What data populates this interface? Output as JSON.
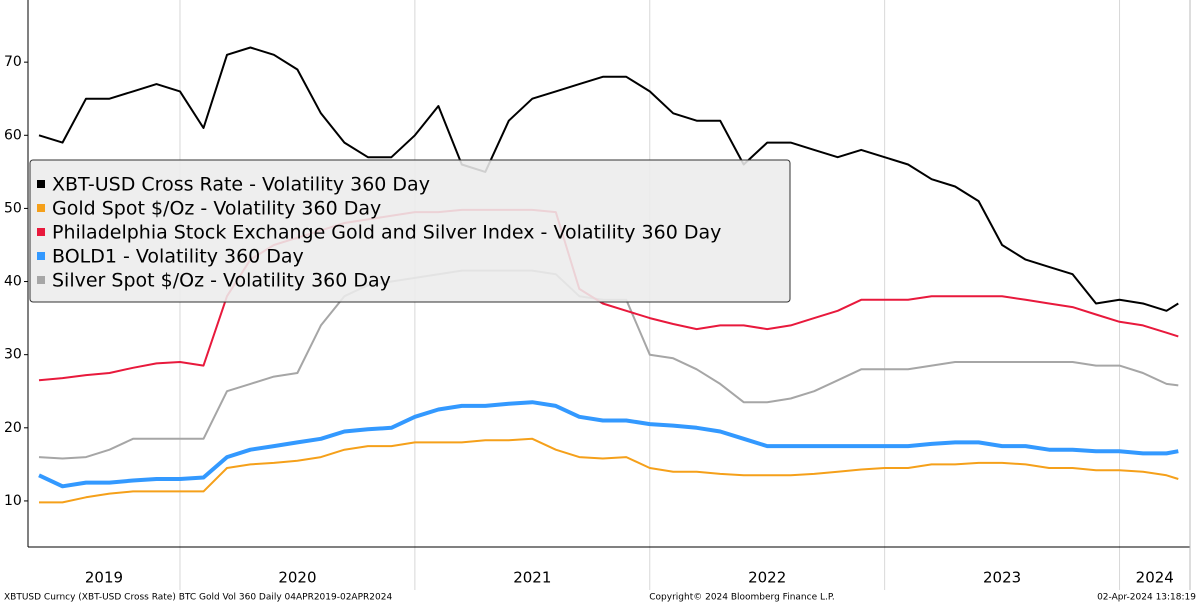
{
  "chart_data": {
    "type": "line",
    "x": [
      2019.4,
      2019.5,
      2019.6,
      2019.7,
      2019.8,
      2019.9,
      2020.0,
      2020.1,
      2020.2,
      2020.3,
      2020.4,
      2020.5,
      2020.6,
      2020.7,
      2020.8,
      2020.9,
      2021.0,
      2021.1,
      2021.2,
      2021.3,
      2021.4,
      2021.5,
      2021.6,
      2021.7,
      2021.8,
      2021.9,
      2022.0,
      2022.1,
      2022.2,
      2022.3,
      2022.4,
      2022.5,
      2022.6,
      2022.7,
      2022.8,
      2022.9,
      2023.0,
      2023.1,
      2023.2,
      2023.3,
      2023.4,
      2023.5,
      2023.6,
      2023.7,
      2023.8,
      2023.9,
      2024.0,
      2024.1,
      2024.2,
      2024.25
    ],
    "series": [
      {
        "name": "Silver Spot $/Oz - Volatility 360 Day",
        "color": "#a6a6a6",
        "values": [
          16,
          15.8,
          16,
          17,
          18.5,
          18.5,
          18.5,
          18.5,
          25,
          26,
          27,
          27.5,
          34,
          38,
          39.5,
          40,
          40.5,
          41,
          41.5,
          41.5,
          41.5,
          41.5,
          41,
          38,
          37.5,
          37.5,
          30,
          29.5,
          28,
          26,
          23.5,
          23.5,
          24,
          25,
          26.5,
          28,
          28,
          28,
          28.5,
          29,
          29,
          29,
          29,
          29,
          29,
          28.5,
          28.5,
          27.5,
          26,
          25.8
        ]
      },
      {
        "name": "Philadelphia Stock Exchange Gold and Silver Index - Volatility 360 Day",
        "color": "#e8193c",
        "values": [
          26.5,
          26.8,
          27.2,
          27.5,
          28.2,
          28.8,
          29,
          28.5,
          38,
          43,
          45,
          46,
          47,
          48,
          48.5,
          49,
          49.5,
          49.5,
          49.8,
          49.8,
          49.8,
          49.8,
          49.5,
          39,
          37,
          36,
          35,
          34.2,
          33.5,
          34,
          34,
          33.5,
          34,
          35,
          36,
          37.5,
          37.5,
          37.5,
          38,
          38,
          38,
          38,
          37.5,
          37,
          36.5,
          35.5,
          34.5,
          34,
          33,
          32.5
        ]
      },
      {
        "name": "Gold Spot $/Oz - Volatility 360 Day",
        "color": "#f5a01a",
        "values": [
          9.8,
          9.8,
          10.5,
          11,
          11.3,
          11.3,
          11.3,
          11.3,
          14.5,
          15,
          15.2,
          15.5,
          16,
          17,
          17.5,
          17.5,
          18,
          18,
          18,
          18.3,
          18.3,
          18.5,
          17,
          16,
          15.8,
          16,
          14.5,
          14,
          14,
          13.7,
          13.5,
          13.5,
          13.5,
          13.7,
          14,
          14.3,
          14.5,
          14.5,
          15,
          15,
          15.2,
          15.2,
          15,
          14.5,
          14.5,
          14.2,
          14.2,
          14,
          13.5,
          13
        ]
      },
      {
        "name": "BOLD1 - Volatility 360 Day",
        "color": "#3399ff",
        "values": [
          13.5,
          12,
          12.5,
          12.5,
          12.8,
          13,
          13,
          13.2,
          16,
          17,
          17.5,
          18,
          18.5,
          19.5,
          19.8,
          20,
          21.5,
          22.5,
          23,
          23,
          23.3,
          23.5,
          23,
          21.5,
          21,
          21,
          20.5,
          20.3,
          20,
          19.5,
          18.5,
          17.5,
          17.5,
          17.5,
          17.5,
          17.5,
          17.5,
          17.5,
          17.8,
          18,
          18,
          17.5,
          17.5,
          17,
          17,
          16.8,
          16.8,
          16.5,
          16.5,
          16.8
        ]
      },
      {
        "name": "XBT-USD Cross Rate - Volatility 360 Day",
        "color": "#000000",
        "values": [
          60,
          59,
          65,
          65,
          66,
          67,
          66,
          61,
          71,
          72,
          71,
          69,
          63,
          59,
          57,
          57,
          60,
          64,
          56,
          55,
          62,
          65,
          66,
          67,
          68,
          68,
          66,
          63,
          62,
          62,
          56,
          59,
          59,
          58,
          57,
          58,
          57,
          56,
          54,
          53,
          51,
          45,
          43,
          42,
          41,
          37,
          37.5,
          37,
          36,
          37
        ]
      }
    ],
    "legend_order": [
      4,
      2,
      1,
      3,
      0
    ],
    "xlim": [
      2019.353,
      2024.3
    ],
    "xticks": [
      2020,
      2021,
      2022,
      2023,
      2024
    ],
    "year_labels": [
      "2019",
      "2020",
      "2021",
      "2022",
      "2023",
      "2024"
    ],
    "ylim": [
      3.7,
      78.5
    ],
    "yticks": [
      10,
      20,
      30,
      40,
      50,
      60,
      70
    ],
    "footer_left": "XBTUSD Curncy (XBT-USD Cross Rate) BTC Gold Vol 360  Daily 04APR2019-02APR2024",
    "footer_center": "Copyright© 2024 Bloomberg Finance L.P.",
    "footer_right": "02-Apr-2024 13:18:19"
  }
}
